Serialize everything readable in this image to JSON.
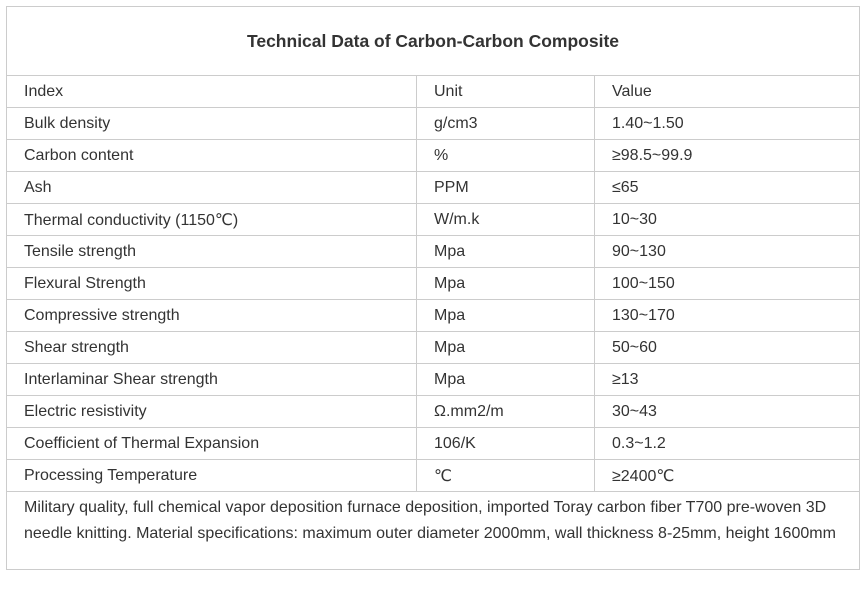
{
  "title": "Technical Data of Carbon-Carbon Composite",
  "columns": [
    "Index",
    "Unit",
    "Value"
  ],
  "rows": [
    {
      "index": "Bulk density",
      "unit": "g/cm3",
      "value": "1.40~1.50"
    },
    {
      "index": "Carbon content",
      "unit": "%",
      "value": "≥98.5~99.9"
    },
    {
      "index": "Ash",
      "unit": "PPM",
      "value": "≤65"
    },
    {
      "index": "Thermal conductivity (1150℃)",
      "unit": "W/m.k",
      "value": "10~30"
    },
    {
      "index": "Tensile strength",
      "unit": "Mpa",
      "value": "90~130"
    },
    {
      "index": "Flexural Strength",
      "unit": "Mpa",
      "value": "100~150"
    },
    {
      "index": "Compressive strength",
      "unit": "Mpa",
      "value": "130~170"
    },
    {
      "index": "Shear strength",
      "unit": "Mpa",
      "value": "50~60"
    },
    {
      "index": "Interlaminar Shear strength",
      "unit": "Mpa",
      "value": "≥13"
    },
    {
      "index": "Electric resistivity",
      "unit": "Ω.mm2/m",
      "value": "30~43"
    },
    {
      "index": "Coefficient of Thermal Expansion",
      "unit": "106/K",
      "value": "0.3~1.2"
    },
    {
      "index": "Processing Temperature",
      "unit": "℃",
      "value": "≥2400℃"
    }
  ],
  "note": "Military quality, full chemical vapor deposition furnace deposition, imported Toray carbon fiber T700 pre-woven 3D needle knitting. Material specifications: maximum outer diameter 2000mm, wall thickness 8-25mm, height 1600mm",
  "colors": {
    "text": "#333333",
    "border": "#cccccc",
    "background": "#ffffff"
  }
}
